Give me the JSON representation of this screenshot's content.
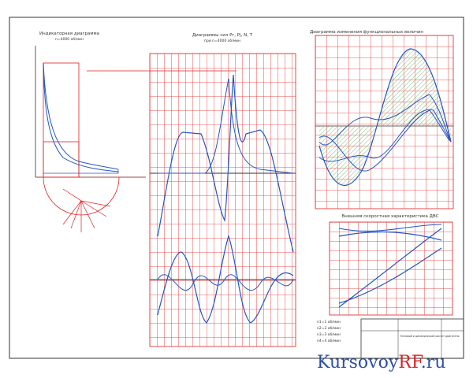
{
  "panels": [
    {
      "title": "Индикаторная диаграмма",
      "subtitle": "n=4000 об/мин"
    },
    {
      "title": "Диаграммы сил Pг, Pj, N, T",
      "subtitle": "при n=4000 об/мин"
    },
    {
      "title": "Диаграмма изменения функциональных величин"
    },
    {
      "title": "Внешняя скоростная характеристика ДВС"
    }
  ],
  "notes": [
    "n1=1 об/мин",
    "n2=2 об/мин",
    "n3=3 об/мин",
    "n4=4 об/мин"
  ],
  "title_block": {
    "title": "Тепловой и динамический расчет двигателя"
  },
  "watermark": {
    "brand": "Kursovoy",
    "accent": "RF",
    "suffix": ".ru"
  }
}
